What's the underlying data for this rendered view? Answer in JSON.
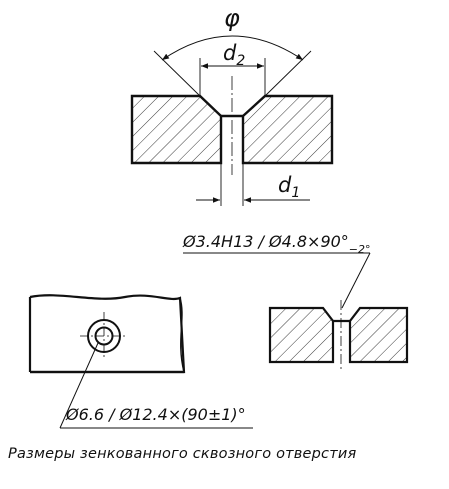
{
  "top_view": {
    "angle_label": "φ",
    "d2_label": "d",
    "d2_sub": "2",
    "d1_label": "d",
    "d1_sub": "1"
  },
  "callout_right": {
    "text": "Ø3.4H13 / Ø4.8×90°",
    "tolerance": "−2°"
  },
  "callout_left": {
    "text": "Ø6.6 / Ø12.4×(90±1)°"
  },
  "caption": "Размеры зенкованного сквозного отверстия"
}
